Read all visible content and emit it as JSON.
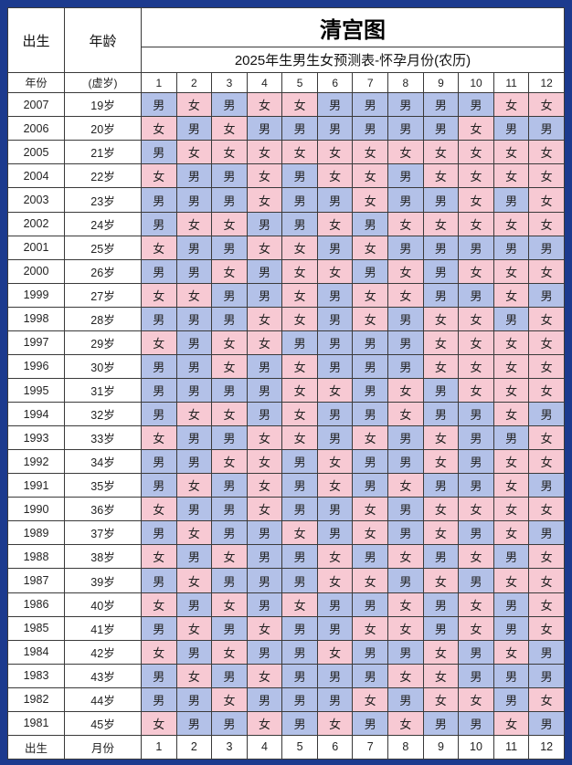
{
  "colors": {
    "frame_bg": "#1c3a8e",
    "male_bg": "#b3c1e8",
    "female_bg": "#f7c9d3",
    "border": "#3a3a3a"
  },
  "header": {
    "col_birth": "出生",
    "col_age": "年龄",
    "sub_year": "年份",
    "sub_age": "(虚岁)"
  },
  "footer": {
    "birth": "出生",
    "month_label": "月份"
  },
  "legend": {
    "male": "男",
    "female": "女"
  },
  "chart_data": {
    "type": "table",
    "title": "清宫图",
    "subtitle": "2025年生男生女预测表-怀孕月份(农历)",
    "row_header": [
      "年份",
      "(虚岁)"
    ],
    "columns": [
      "1",
      "2",
      "3",
      "4",
      "5",
      "6",
      "7",
      "8",
      "9",
      "10",
      "11",
      "12"
    ],
    "rows": [
      {
        "year": "2007",
        "age": "19岁",
        "values": [
          "男",
          "女",
          "男",
          "女",
          "女",
          "男",
          "男",
          "男",
          "男",
          "男",
          "女",
          "女"
        ]
      },
      {
        "year": "2006",
        "age": "20岁",
        "values": [
          "女",
          "男",
          "女",
          "男",
          "男",
          "男",
          "男",
          "男",
          "男",
          "女",
          "男",
          "男"
        ]
      },
      {
        "year": "2005",
        "age": "21岁",
        "values": [
          "男",
          "女",
          "女",
          "女",
          "女",
          "女",
          "女",
          "女",
          "女",
          "女",
          "女",
          "女"
        ]
      },
      {
        "year": "2004",
        "age": "22岁",
        "values": [
          "女",
          "男",
          "男",
          "女",
          "男",
          "女",
          "女",
          "男",
          "女",
          "女",
          "女",
          "女"
        ]
      },
      {
        "year": "2003",
        "age": "23岁",
        "values": [
          "男",
          "男",
          "男",
          "女",
          "男",
          "男",
          "女",
          "男",
          "男",
          "女",
          "男",
          "女"
        ]
      },
      {
        "year": "2002",
        "age": "24岁",
        "values": [
          "男",
          "女",
          "女",
          "男",
          "男",
          "女",
          "男",
          "女",
          "女",
          "女",
          "女",
          "女"
        ]
      },
      {
        "year": "2001",
        "age": "25岁",
        "values": [
          "女",
          "男",
          "男",
          "女",
          "女",
          "男",
          "女",
          "男",
          "男",
          "男",
          "男",
          "男"
        ]
      },
      {
        "year": "2000",
        "age": "26岁",
        "values": [
          "男",
          "男",
          "女",
          "男",
          "女",
          "女",
          "男",
          "女",
          "男",
          "女",
          "女",
          "女"
        ]
      },
      {
        "year": "1999",
        "age": "27岁",
        "values": [
          "女",
          "女",
          "男",
          "男",
          "女",
          "男",
          "女",
          "女",
          "男",
          "男",
          "女",
          "男"
        ]
      },
      {
        "year": "1998",
        "age": "28岁",
        "values": [
          "男",
          "男",
          "男",
          "女",
          "女",
          "男",
          "女",
          "男",
          "女",
          "女",
          "男",
          "女"
        ]
      },
      {
        "year": "1997",
        "age": "29岁",
        "values": [
          "女",
          "男",
          "女",
          "女",
          "男",
          "男",
          "男",
          "男",
          "女",
          "女",
          "女",
          "女"
        ]
      },
      {
        "year": "1996",
        "age": "30岁",
        "values": [
          "男",
          "男",
          "女",
          "男",
          "女",
          "男",
          "男",
          "男",
          "女",
          "女",
          "女",
          "女"
        ]
      },
      {
        "year": "1995",
        "age": "31岁",
        "values": [
          "男",
          "男",
          "男",
          "男",
          "女",
          "女",
          "男",
          "女",
          "男",
          "女",
          "女",
          "女"
        ]
      },
      {
        "year": "1994",
        "age": "32岁",
        "values": [
          "男",
          "女",
          "女",
          "男",
          "女",
          "男",
          "男",
          "女",
          "男",
          "男",
          "女",
          "男"
        ]
      },
      {
        "year": "1993",
        "age": "33岁",
        "values": [
          "女",
          "男",
          "男",
          "女",
          "女",
          "男",
          "女",
          "男",
          "女",
          "男",
          "男",
          "女"
        ]
      },
      {
        "year": "1992",
        "age": "34岁",
        "values": [
          "男",
          "男",
          "女",
          "女",
          "男",
          "女",
          "男",
          "男",
          "女",
          "男",
          "女",
          "女"
        ]
      },
      {
        "year": "1991",
        "age": "35岁",
        "values": [
          "男",
          "女",
          "男",
          "女",
          "男",
          "女",
          "男",
          "女",
          "男",
          "男",
          "女",
          "男"
        ]
      },
      {
        "year": "1990",
        "age": "36岁",
        "values": [
          "女",
          "男",
          "男",
          "女",
          "男",
          "男",
          "女",
          "男",
          "女",
          "女",
          "女",
          "女"
        ]
      },
      {
        "year": "1989",
        "age": "37岁",
        "values": [
          "男",
          "女",
          "男",
          "男",
          "女",
          "男",
          "女",
          "男",
          "女",
          "男",
          "女",
          "男"
        ]
      },
      {
        "year": "1988",
        "age": "38岁",
        "values": [
          "女",
          "男",
          "女",
          "男",
          "男",
          "女",
          "男",
          "女",
          "男",
          "女",
          "男",
          "女"
        ]
      },
      {
        "year": "1987",
        "age": "39岁",
        "values": [
          "男",
          "女",
          "男",
          "男",
          "男",
          "女",
          "女",
          "男",
          "女",
          "男",
          "女",
          "女"
        ]
      },
      {
        "year": "1986",
        "age": "40岁",
        "values": [
          "女",
          "男",
          "女",
          "男",
          "女",
          "男",
          "男",
          "女",
          "男",
          "女",
          "男",
          "女"
        ]
      },
      {
        "year": "1985",
        "age": "41岁",
        "values": [
          "男",
          "女",
          "男",
          "女",
          "男",
          "男",
          "女",
          "女",
          "男",
          "女",
          "男",
          "女"
        ]
      },
      {
        "year": "1984",
        "age": "42岁",
        "values": [
          "女",
          "男",
          "女",
          "男",
          "男",
          "女",
          "男",
          "男",
          "女",
          "男",
          "女",
          "男"
        ]
      },
      {
        "year": "1983",
        "age": "43岁",
        "values": [
          "男",
          "女",
          "男",
          "女",
          "男",
          "男",
          "男",
          "女",
          "女",
          "男",
          "男",
          "男"
        ]
      },
      {
        "year": "1982",
        "age": "44岁",
        "values": [
          "男",
          "男",
          "女",
          "男",
          "男",
          "男",
          "女",
          "男",
          "女",
          "女",
          "男",
          "女"
        ]
      },
      {
        "year": "1981",
        "age": "45岁",
        "values": [
          "女",
          "男",
          "男",
          "女",
          "男",
          "女",
          "男",
          "女",
          "男",
          "男",
          "女",
          "男"
        ]
      }
    ]
  }
}
